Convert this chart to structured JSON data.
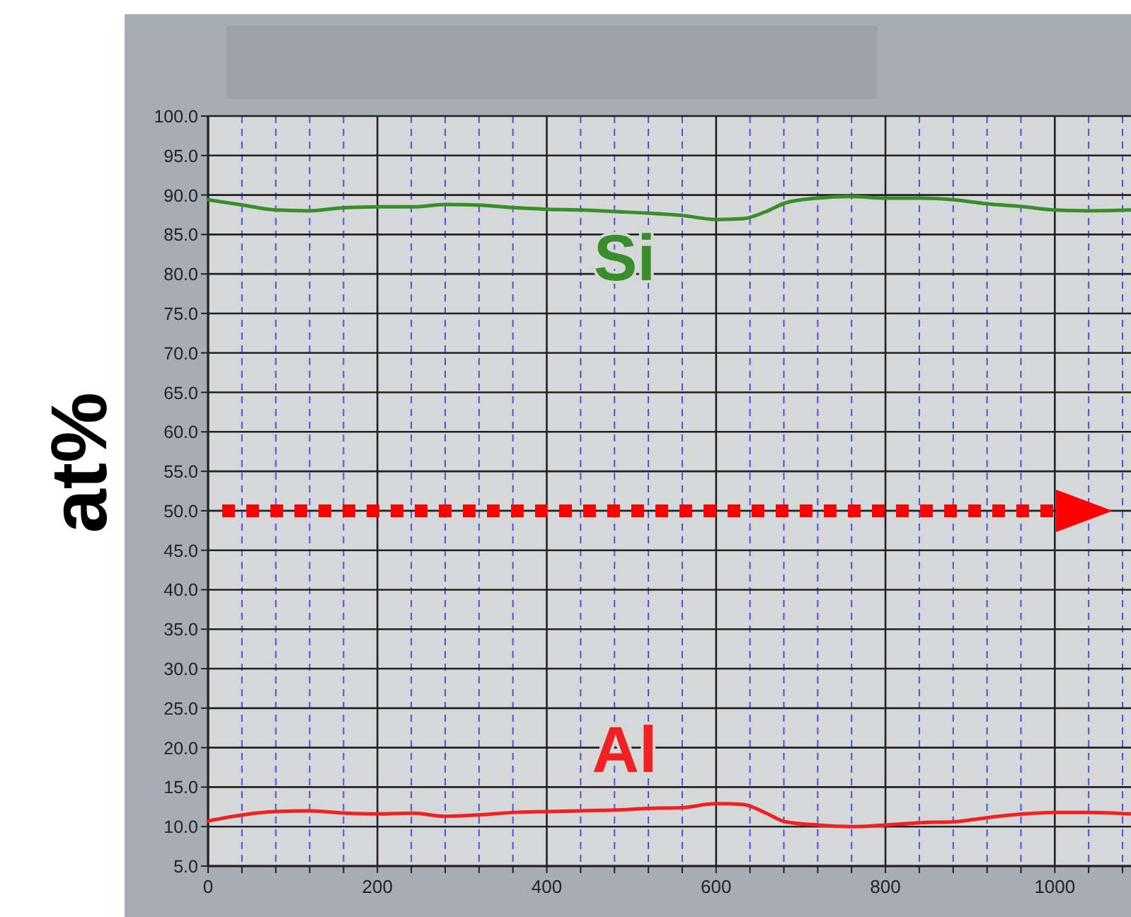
{
  "chart_data": {
    "type": "line",
    "ylabel": "at%",
    "x": [
      0,
      42,
      80,
      120,
      162,
      202,
      242,
      280,
      322,
      362,
      400,
      440,
      481,
      520,
      560,
      600,
      632,
      659,
      682,
      720,
      760,
      800,
      842,
      880,
      918,
      964,
      1000,
      1040,
      1090
    ],
    "series": [
      {
        "name": "Si",
        "color": "#3a8e2a",
        "values": [
          89.4,
          88.7,
          88.1,
          88.0,
          88.4,
          88.5,
          88.5,
          88.8,
          88.7,
          88.4,
          88.2,
          88.1,
          87.9,
          87.7,
          87.4,
          86.9,
          87.0,
          87.9,
          89.0,
          89.6,
          89.8,
          89.6,
          89.6,
          89.4,
          88.9,
          88.5,
          88.1,
          88.0,
          88.1
        ]
      },
      {
        "name": "Al",
        "color": "#ee2222",
        "values": [
          10.7,
          11.5,
          11.9,
          12.0,
          11.7,
          11.6,
          11.7,
          11.3,
          11.5,
          11.8,
          11.9,
          12.0,
          12.1,
          12.3,
          12.4,
          12.9,
          12.8,
          11.7,
          10.6,
          10.2,
          10.0,
          10.2,
          10.5,
          10.6,
          11.1,
          11.6,
          11.8,
          11.8,
          11.6
        ]
      }
    ],
    "xlim": [
      0,
      1090
    ],
    "xticks": [
      0,
      {
        "value": 40,
        "label": null
      },
      {
        "value": 80,
        "label": null
      },
      {
        "value": 120,
        "label": null
      },
      {
        "value": 160,
        "label": null
      },
      200,
      {
        "value": 240,
        "label": null
      },
      {
        "value": 280,
        "label": null
      },
      {
        "value": 320,
        "label": null
      },
      {
        "value": 360,
        "label": null
      },
      400,
      {
        "value": 440,
        "label": null
      },
      {
        "value": 480,
        "label": null
      },
      {
        "value": 520,
        "label": null
      },
      {
        "value": 560,
        "label": null
      },
      600,
      {
        "value": 640,
        "label": null
      },
      {
        "value": 680,
        "label": null
      },
      {
        "value": 720,
        "label": null
      },
      {
        "value": 760,
        "label": null
      },
      800,
      {
        "value": 840,
        "label": null
      },
      {
        "value": 880,
        "label": null
      },
      {
        "value": 920,
        "label": null
      },
      {
        "value": 960,
        "label": null
      },
      1000,
      {
        "value": 1040,
        "label": null
      },
      {
        "value": 1080,
        "label": null
      }
    ],
    "ylim": [
      5,
      100
    ],
    "yticks": [
      {
        "value": 5,
        "label": "5.0"
      },
      {
        "value": 10,
        "label": "10.0"
      },
      {
        "value": 15,
        "label": "15.0"
      },
      {
        "value": 20,
        "label": "20.0"
      },
      {
        "value": 25,
        "label": "25.0"
      },
      {
        "value": 30,
        "label": "30.0"
      },
      {
        "value": 35,
        "label": "35.0"
      },
      {
        "value": 40,
        "label": "40.0"
      },
      {
        "value": 45,
        "label": "45.0"
      },
      {
        "value": 50,
        "label": "50.0"
      },
      {
        "value": 55,
        "label": "55.0"
      },
      {
        "value": 60,
        "label": "60.0"
      },
      {
        "value": 65,
        "label": "65.0"
      },
      {
        "value": 70,
        "label": "70.0"
      },
      {
        "value": 75,
        "label": "75.0"
      },
      {
        "value": 80,
        "label": "80.0"
      },
      {
        "value": 85,
        "label": "85.0"
      },
      {
        "value": 90,
        "label": "90.0"
      },
      {
        "value": 95,
        "label": "95.0"
      },
      {
        "value": 100,
        "label": "100.0"
      }
    ],
    "ref_lines": [
      {
        "axis": "y",
        "value": 50,
        "color": "#ff0000",
        "line_style": "dotted"
      }
    ],
    "grid": true,
    "legend": false,
    "marker": "none",
    "line_style": "solid"
  }
}
